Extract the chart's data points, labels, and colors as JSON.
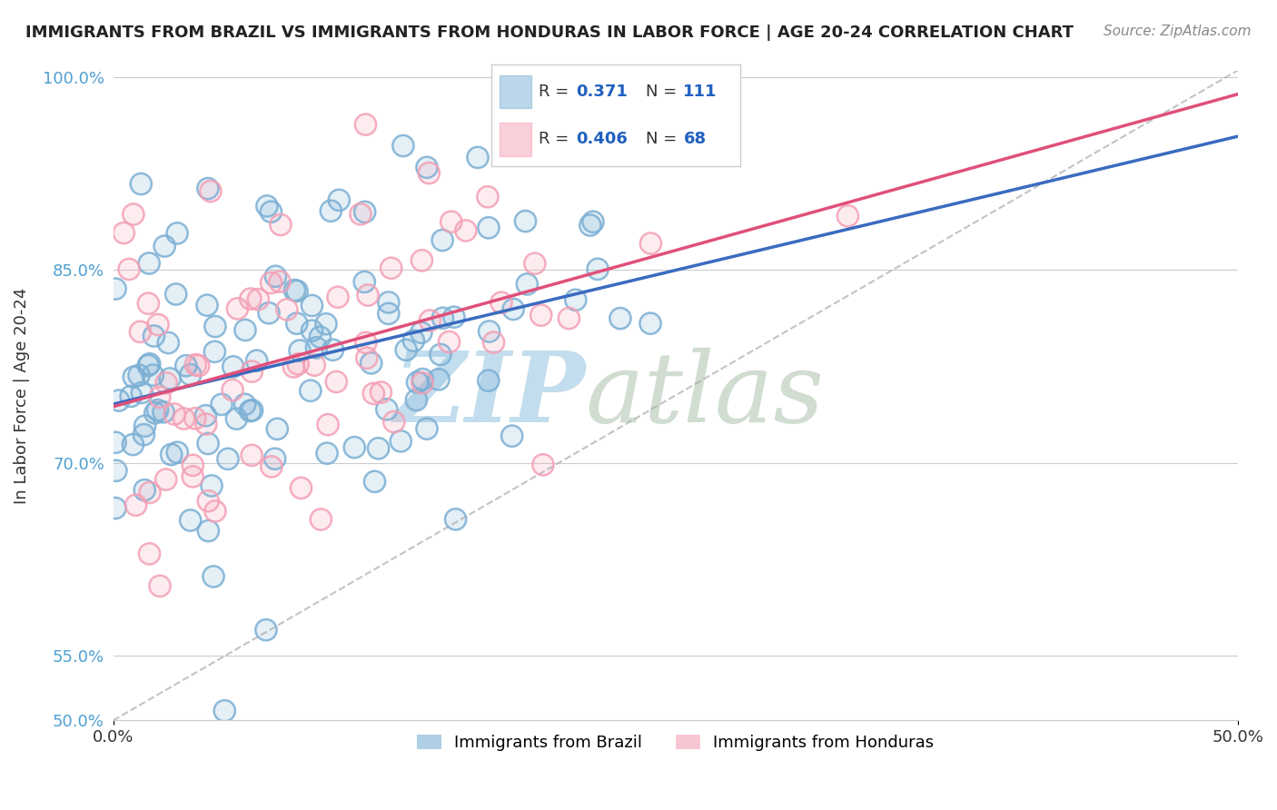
{
  "title": "IMMIGRANTS FROM BRAZIL VS IMMIGRANTS FROM HONDURAS IN LABOR FORCE | AGE 20-24 CORRELATION CHART",
  "source": "Source: ZipAtlas.com",
  "ylabel": "In Labor Force | Age 20-24",
  "xlim": [
    0.0,
    0.5
  ],
  "ylim": [
    0.5,
    1.005
  ],
  "ytick_values": [
    0.5,
    0.55,
    0.7,
    0.85,
    1.0
  ],
  "brazil_color": "#7bafd4",
  "honduras_color": "#f4a0b5",
  "brazil_R": 0.371,
  "brazil_N": 111,
  "honduras_R": 0.406,
  "honduras_N": 68,
  "regression_blue": "#3a6bbf",
  "regression_pink": "#e0507a",
  "legend_label_brazil": "Immigrants from Brazil",
  "legend_label_honduras": "Immigrants from Honduras",
  "watermark_zip": "ZIP",
  "watermark_atlas": "atlas",
  "watermark_color_zip": "#b8d8ea",
  "watermark_color_atlas": "#c8d8c8",
  "background_color": "#ffffff",
  "grid_color": "#cccccc",
  "title_color": "#222222",
  "source_color": "#888888",
  "ylabel_color": "#333333",
  "ytick_color": "#4fa0d0",
  "xtick_color": "#333333",
  "legend_r_color": "#2060c0",
  "ref_line_color": "#aaaaaa",
  "legend_box_edge": "#cccccc"
}
